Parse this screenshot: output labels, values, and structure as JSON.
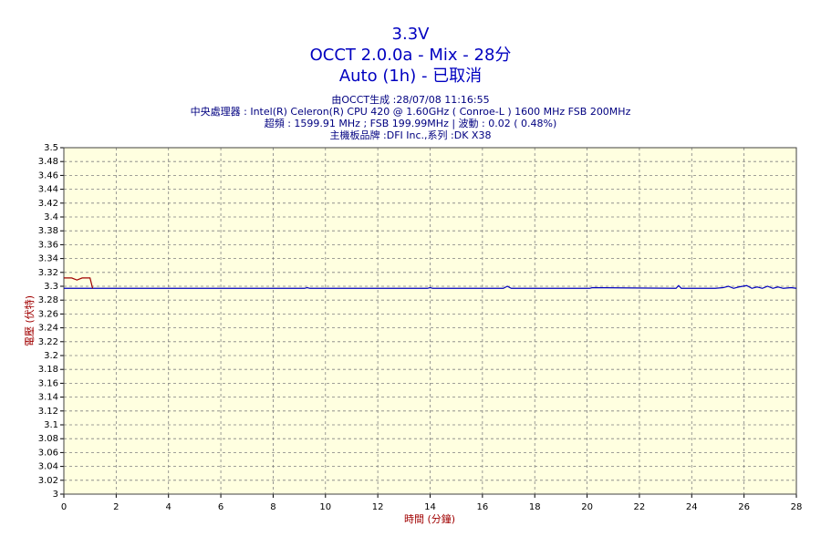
{
  "chart_data": {
    "type": "line",
    "title": "3.3V",
    "subtitle": [
      "OCCT 2.0.0a - Mix - 28分",
      "Auto (1h) - 已取消"
    ],
    "info": [
      "由OCCT生成 :28/07/08 11:16:55",
      "中央處理器 : Intel(R) Celeron(R) CPU 420 @ 1.60GHz ( Conroe-L ) 1600 MHz FSB 200MHz",
      "超頻 : 1599.91 MHz ; FSB 199.99MHz | 波動 : 0.02 ( 0.48%)",
      "主機板品牌 :DFI Inc.,系列 :DK X38"
    ],
    "xlabel": "時間 (分鐘)",
    "ylabel": "電壓 (伏特)",
    "xlim": [
      0,
      28
    ],
    "xticks": [
      0,
      2,
      4,
      6,
      8,
      10,
      12,
      14,
      16,
      18,
      20,
      22,
      24,
      26,
      28
    ],
    "ylim": [
      3,
      3.5
    ],
    "yticks": [
      3,
      3.02,
      3.04,
      3.06,
      3.08,
      3.1,
      3.12,
      3.14,
      3.16,
      3.18,
      3.2,
      3.22,
      3.24,
      3.26,
      3.28,
      3.3,
      3.32,
      3.34,
      3.36,
      3.38,
      3.4,
      3.42,
      3.44,
      3.46,
      3.48,
      3.5
    ],
    "grid": true,
    "series": [
      {
        "color": "#0000c0",
        "x": [
          0,
          1.1,
          9.2,
          9.3,
          9.4,
          13.9,
          14,
          14.1,
          16.8,
          16.95,
          17.1,
          20.1,
          20.2,
          23.4,
          23.5,
          23.6,
          24.9,
          25.2,
          25.4,
          25.6,
          25.8,
          26.1,
          26.3,
          26.5,
          26.7,
          26.9,
          27.1,
          27.3,
          27.5,
          27.8,
          28
        ],
        "values": [
          3.297,
          3.297,
          3.297,
          3.298,
          3.297,
          3.297,
          3.298,
          3.297,
          3.297,
          3.3,
          3.297,
          3.297,
          3.298,
          3.297,
          3.301,
          3.297,
          3.297,
          3.298,
          3.3,
          3.297,
          3.299,
          3.301,
          3.297,
          3.299,
          3.297,
          3.3,
          3.297,
          3.299,
          3.297,
          3.298,
          3.297
        ]
      },
      {
        "color": "#a00000",
        "x": [
          0,
          0.3,
          0.5,
          0.7,
          1.0,
          1.1
        ],
        "values": [
          3.312,
          3.312,
          3.309,
          3.312,
          3.312,
          3.297
        ]
      }
    ]
  }
}
